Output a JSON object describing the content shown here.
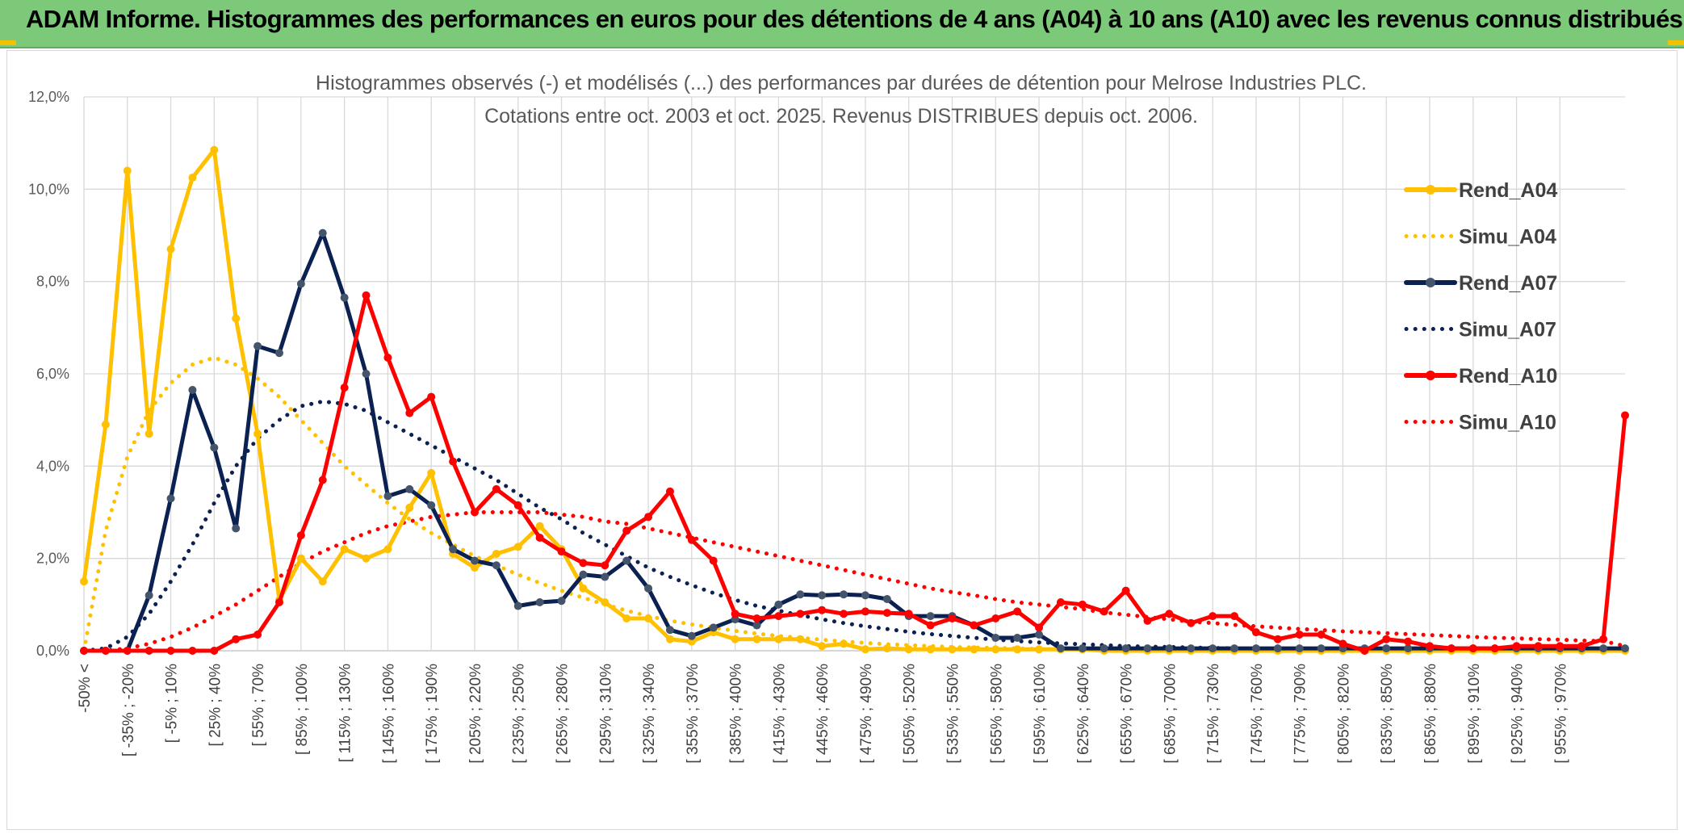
{
  "header": {
    "title": "ADAM Informe. Histogrammes des performances en euros pour des détentions de 4 ans (A04) à 10 ans (A10) avec les revenus connus distribués"
  },
  "chart_data": {
    "type": "line",
    "title_line1": "Histogrammes observés (-) et modélisés (...) des performances par durées de détention pour Melrose Industries PLC.",
    "title_line2": "Cotations entre oct. 2003 et oct. 2025. Revenus DISTRIBUES depuis oct. 2006.",
    "ylim": [
      0,
      12
    ],
    "yticks": [
      "0,0%",
      "2,0%",
      "4,0%",
      "6,0%",
      "8,0%",
      "10,0%",
      "12,0%"
    ],
    "n_points": 72,
    "x_labels": [
      "-50% <",
      "[ -35% ; -20%",
      "[ -5% ; 10%",
      "[ 25% ; 40%",
      "[ 55% ; 70%",
      "[ 85% ; 100%",
      "[ 115% ; 130%",
      "[ 145% ; 160%",
      "[ 175% ; 190%",
      "[ 205% ; 220%",
      "[ 235% ; 250%",
      "[ 265% ; 280%",
      "[ 295% ; 310%",
      "[ 325% ; 340%",
      "[ 355% ; 370%",
      "[ 385% ; 400%",
      "[ 415% ; 430%",
      "[ 445% ; 460%",
      "[ 475% ; 490%",
      "[ 505% ; 520%",
      "[ 535% ; 550%",
      "[ 565% ; 580%",
      "[ 595% ; 610%",
      "[ 625% ; 640%",
      "[ 655% ; 670%",
      "[ 685% ; 700%",
      "[ 715% ; 730%",
      "[ 745% ; 760%",
      "[ 775% ; 790%",
      "[ 805% ; 820%",
      "[ 835% ; 850%",
      "[ 865% ; 880%",
      "[ 895% ; 910%",
      "[ 925% ; 940%",
      "[ 955% ; 970%"
    ],
    "x_label_index": [
      0,
      2,
      4,
      6,
      8,
      10,
      12,
      14,
      16,
      18,
      20,
      22,
      24,
      26,
      28,
      30,
      32,
      34,
      36,
      38,
      40,
      42,
      44,
      46,
      48,
      50,
      52,
      54,
      56,
      58,
      60,
      62,
      64,
      66,
      68
    ],
    "series": [
      {
        "name": "Rend_A04",
        "style": "solid",
        "color": "#ffc000",
        "values": [
          1.5,
          4.9,
          10.4,
          4.7,
          8.7,
          10.25,
          10.85,
          7.2,
          4.7,
          1.1,
          2.0,
          1.5,
          2.2,
          2.0,
          2.2,
          3.1,
          3.85,
          2.1,
          1.8,
          2.1,
          2.25,
          2.7,
          2.2,
          1.35,
          1.05,
          0.7,
          0.7,
          0.25,
          0.2,
          0.4,
          0.25,
          0.25,
          0.25,
          0.25,
          0.1,
          0.15,
          0.03,
          0.05,
          0.03,
          0.03,
          0.03,
          0.03,
          0.03,
          0.03,
          0.03,
          0.03,
          0.03,
          0.0,
          0.0,
          0.0,
          0.0,
          0.0,
          0.0,
          0.0,
          0.0,
          0.0,
          0.0,
          0.0,
          0.0,
          0.0,
          0.0,
          0.0,
          0.0,
          0.0,
          0.0,
          0.0,
          0.0,
          0.0,
          0.0,
          0.0,
          0.0,
          0.0
        ]
      },
      {
        "name": "Simu_A04",
        "style": "dotted",
        "color": "#ffc000",
        "values": [
          0.0,
          2.6,
          4.2,
          5.2,
          5.8,
          6.2,
          6.35,
          6.2,
          5.9,
          5.5,
          5.0,
          4.5,
          4.0,
          3.6,
          3.2,
          2.85,
          2.55,
          2.3,
          2.05,
          1.85,
          1.65,
          1.47,
          1.3,
          1.15,
          1.0,
          0.87,
          0.75,
          0.65,
          0.57,
          0.5,
          0.43,
          0.37,
          0.32,
          0.28,
          0.24,
          0.2,
          0.17,
          0.14,
          0.12,
          0.1,
          0.08,
          0.07,
          0.06,
          0.05,
          0.04,
          0.03,
          0.03,
          0.02,
          0.02,
          0.01,
          0.01,
          0.01,
          0.01,
          0.0,
          0.0,
          0.0,
          0.0,
          0.0,
          0.0,
          0.0,
          0.0,
          0.0,
          0.0,
          0.0,
          0.0,
          0.0,
          0.0,
          0.0,
          0.0,
          0.0,
          0.0,
          0.0
        ]
      },
      {
        "name": "Rend_A07",
        "style": "solid",
        "color": "#0b2151",
        "values": [
          0.0,
          0.0,
          0.0,
          1.2,
          3.3,
          5.65,
          4.4,
          2.65,
          6.6,
          6.45,
          7.95,
          9.05,
          7.65,
          6.0,
          3.35,
          3.5,
          3.15,
          2.2,
          1.95,
          1.85,
          0.97,
          1.05,
          1.08,
          1.65,
          1.6,
          1.95,
          1.35,
          0.45,
          0.32,
          0.5,
          0.68,
          0.55,
          1.0,
          1.22,
          1.2,
          1.22,
          1.2,
          1.12,
          0.75,
          0.75,
          0.75,
          0.55,
          0.28,
          0.28,
          0.35,
          0.05,
          0.05,
          0.05,
          0.05,
          0.05,
          0.05,
          0.05,
          0.05,
          0.05,
          0.05,
          0.05,
          0.05,
          0.05,
          0.05,
          0.05,
          0.05,
          0.05,
          0.05,
          0.05,
          0.05,
          0.05,
          0.05,
          0.05,
          0.05,
          0.05,
          0.05,
          0.05
        ]
      },
      {
        "name": "Simu_A07",
        "style": "dotted",
        "color": "#0b2151",
        "values": [
          0.0,
          0.05,
          0.3,
          0.8,
          1.5,
          2.3,
          3.2,
          4.0,
          4.6,
          5.0,
          5.3,
          5.4,
          5.35,
          5.2,
          4.95,
          4.7,
          4.45,
          4.2,
          3.95,
          3.7,
          3.4,
          3.1,
          2.85,
          2.55,
          2.3,
          2.05,
          1.8,
          1.6,
          1.42,
          1.25,
          1.1,
          0.97,
          0.87,
          0.77,
          0.68,
          0.6,
          0.53,
          0.47,
          0.41,
          0.36,
          0.32,
          0.28,
          0.24,
          0.21,
          0.18,
          0.16,
          0.14,
          0.12,
          0.1,
          0.09,
          0.08,
          0.07,
          0.06,
          0.05,
          0.04,
          0.04,
          0.03,
          0.03,
          0.02,
          0.02,
          0.02,
          0.01,
          0.01,
          0.01,
          0.01,
          0.01,
          0.01,
          0.0,
          0.0,
          0.0,
          0.0,
          0.0
        ]
      },
      {
        "name": "Rend_A10",
        "style": "solid",
        "color": "#ff0000",
        "values": [
          0.0,
          0.0,
          0.0,
          0.0,
          0.0,
          0.0,
          0.0,
          0.25,
          0.35,
          1.05,
          2.5,
          3.7,
          5.7,
          7.7,
          6.35,
          5.15,
          5.5,
          4.1,
          3.0,
          3.5,
          3.15,
          2.45,
          2.15,
          1.9,
          1.85,
          2.6,
          2.9,
          3.45,
          2.4,
          1.95,
          0.8,
          0.7,
          0.75,
          0.8,
          0.88,
          0.8,
          0.85,
          0.82,
          0.8,
          0.55,
          0.7,
          0.55,
          0.7,
          0.85,
          0.5,
          1.05,
          1.0,
          0.85,
          1.3,
          0.65,
          0.8,
          0.6,
          0.75,
          0.75,
          0.4,
          0.25,
          0.35,
          0.35,
          0.15,
          0.0,
          0.25,
          0.2,
          0.1,
          0.05,
          0.05,
          0.05,
          0.1,
          0.1,
          0.1,
          0.1,
          0.25,
          5.1
        ]
      },
      {
        "name": "Simu_A10",
        "style": "dotted",
        "color": "#ff0000",
        "values": [
          0.0,
          0.0,
          0.05,
          0.15,
          0.3,
          0.5,
          0.75,
          1.0,
          1.3,
          1.6,
          1.9,
          2.15,
          2.35,
          2.55,
          2.7,
          2.8,
          2.9,
          2.95,
          3.0,
          3.0,
          3.0,
          3.0,
          2.95,
          2.9,
          2.8,
          2.75,
          2.65,
          2.55,
          2.45,
          2.35,
          2.25,
          2.15,
          2.05,
          1.95,
          1.85,
          1.75,
          1.65,
          1.55,
          1.45,
          1.35,
          1.27,
          1.2,
          1.12,
          1.05,
          1.0,
          0.95,
          0.9,
          0.83,
          0.78,
          0.73,
          0.68,
          0.63,
          0.6,
          0.56,
          0.53,
          0.5,
          0.47,
          0.45,
          0.42,
          0.4,
          0.38,
          0.36,
          0.34,
          0.32,
          0.3,
          0.28,
          0.27,
          0.25,
          0.24,
          0.22,
          0.21,
          0.1
        ]
      }
    ],
    "legend_position": "right"
  }
}
